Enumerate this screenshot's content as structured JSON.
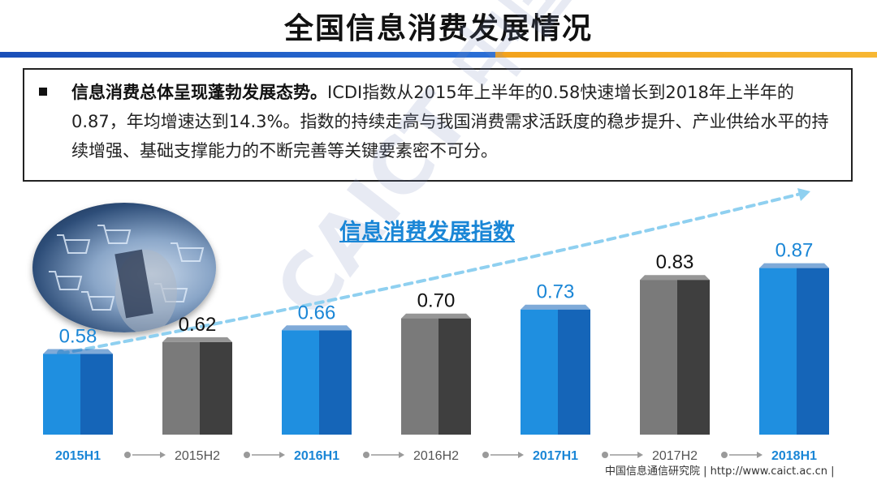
{
  "page": {
    "title": "全国信息消费发展情况",
    "summary_bold": "信息消费总体呈现蓬勃发展态势。",
    "summary_text": "ICDI指数从2015年上半年的0.58快速增长到2018年上半年的0.87，年均增速达到14.3%。指数的持续走高与我国消费需求活跃度的稳步提升、产业供给水平的持续增强、基础支撑能力的不断完善等关键要素密不可分。",
    "watermark": "CAICT 中国信通院",
    "footer": "中国信息通信研究院   |   http://www.caict.ac.cn   |"
  },
  "colors": {
    "blue": "#1f8fe0",
    "blue_dark": "#1565b8",
    "gray": "#7a7a7a",
    "gray_dark": "#3f3f3f",
    "label_blue": "#1a86d6",
    "label_gray": "#555555",
    "trend": "#8fd0f0"
  },
  "chart_data": {
    "type": "bar",
    "title": "信息消费发展指数",
    "categories": [
      "2015H1",
      "2015H2",
      "2016H1",
      "2016H2",
      "2017H1",
      "2017H2",
      "2018H1"
    ],
    "values": [
      0.58,
      0.62,
      0.66,
      0.7,
      0.73,
      0.83,
      0.87
    ],
    "value_labels": [
      "0.58",
      "0.62",
      "0.66",
      "0.70",
      "0.73",
      "0.83",
      "0.87"
    ],
    "bar_color_pattern": [
      "blue",
      "gray",
      "blue",
      "gray",
      "blue",
      "gray",
      "blue"
    ],
    "trend_arrow": true,
    "grid": false,
    "xlabel": "",
    "ylabel": ""
  }
}
